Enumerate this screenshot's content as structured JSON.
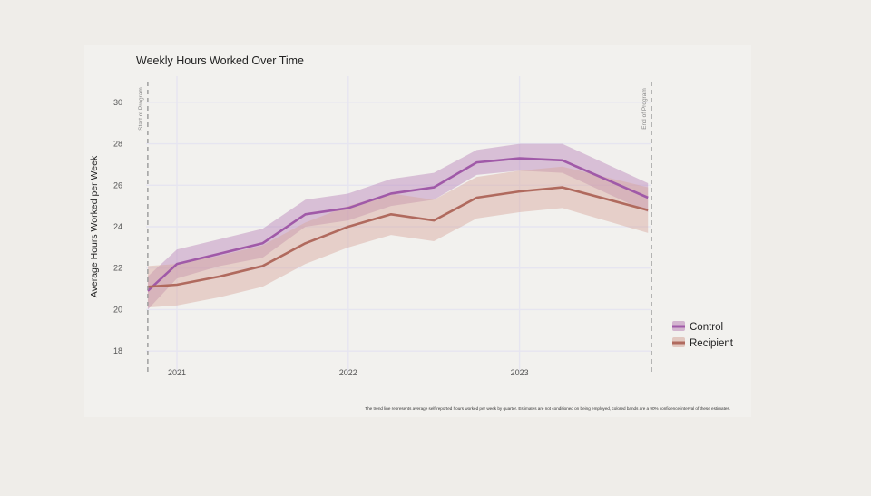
{
  "chart_data": {
    "type": "line",
    "title": "Weekly Hours Worked Over Time",
    "xlabel": "",
    "ylabel": "Average Hours Worked per Week",
    "ylim": [
      17,
      31
    ],
    "xlim": [
      2020.82,
      2023.77
    ],
    "x_ticks": [
      2021,
      2022,
      2023
    ],
    "x_tick_labels": [
      "2021",
      "2022",
      "2023"
    ],
    "y_ticks": [
      18,
      20,
      22,
      24,
      26,
      28,
      30
    ],
    "y_tick_labels": [
      "18",
      "20",
      "22",
      "24",
      "26",
      "28",
      "30"
    ],
    "grid": true,
    "legend_position": "right",
    "x": [
      2020.83,
      2021.0,
      2021.25,
      2021.5,
      2021.75,
      2022.0,
      2022.25,
      2022.5,
      2022.75,
      2023.0,
      2023.25,
      2023.75
    ],
    "series": [
      {
        "name": "Control",
        "color": "#a05aa8",
        "band_color": "#b983b7",
        "values": [
          20.9,
          22.2,
          22.7,
          23.2,
          24.6,
          24.9,
          25.6,
          25.9,
          27.1,
          27.3,
          27.2,
          25.4
        ],
        "lower": [
          20.0,
          21.5,
          22.1,
          22.5,
          24.0,
          24.3,
          25.0,
          25.3,
          26.5,
          26.7,
          26.6,
          24.7
        ],
        "upper": [
          21.6,
          22.9,
          23.4,
          23.9,
          25.3,
          25.6,
          26.3,
          26.6,
          27.7,
          28.0,
          28.0,
          26.1
        ]
      },
      {
        "name": "Recipient",
        "color": "#b06a5e",
        "band_color": "#d6a69b",
        "values": [
          21.1,
          21.2,
          21.6,
          22.1,
          23.2,
          24.0,
          24.6,
          24.3,
          25.4,
          25.7,
          25.9,
          24.8
        ],
        "lower": [
          20.1,
          20.2,
          20.6,
          21.1,
          22.2,
          23.0,
          23.6,
          23.3,
          24.4,
          24.7,
          24.9,
          23.7
        ],
        "upper": [
          22.1,
          22.2,
          22.6,
          23.1,
          24.2,
          25.0,
          25.6,
          25.3,
          26.4,
          26.7,
          26.9,
          25.9
        ]
      }
    ],
    "vlines": [
      {
        "x": 2020.83,
        "label": "Start of Program"
      },
      {
        "x": 2023.77,
        "label": "End of Program"
      }
    ],
    "caption": "The trend line represents average self-reported hours worked per week by quarter. Estimates are not conditioned on being employed, colored bands are a 90% confidence interval of these estimates."
  }
}
